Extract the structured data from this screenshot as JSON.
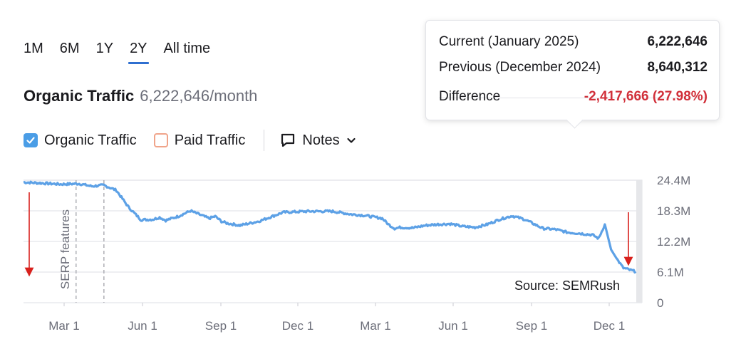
{
  "periods": [
    "1M",
    "6M",
    "1Y",
    "2Y",
    "All time"
  ],
  "active_period": "2Y",
  "header": {
    "title": "Organic Traffic",
    "metric": "6,222,646/month"
  },
  "legend": {
    "organic_label": "Organic Traffic",
    "paid_label": "Paid Traffic",
    "notes_label": "Notes"
  },
  "tooltip": {
    "current_label": "Current (January 2025)",
    "current_value": "6,222,646",
    "previous_label": "Previous (December 2024)",
    "previous_value": "8,640,312",
    "difference_label": "Difference",
    "difference_value": "-2,417,666 (27.98%)"
  },
  "colors": {
    "line": "#5da1e6",
    "accent": "#2f6fd0",
    "negative": "#d1303a",
    "arrow": "#d8201c"
  },
  "annotation": "SERP features",
  "source": "Source: SEMRush",
  "chart_data": {
    "type": "line",
    "title": "Organic Traffic",
    "xlabel": "",
    "ylabel": "",
    "x_ticks": [
      "Mar 1",
      "Jun 1",
      "Sep 1",
      "Dec 1",
      "Mar 1",
      "Jun 1",
      "Sep 1",
      "Dec 1"
    ],
    "y_ticks": [
      "0",
      "6.1M",
      "12.2M",
      "18.3M",
      "24.4M"
    ],
    "ylim": [
      0,
      24.4
    ],
    "grid": true,
    "series": [
      {
        "name": "Organic Traffic (M)",
        "x": [
          0,
          6,
          9,
          11,
          13,
          15,
          17,
          19,
          21,
          22,
          23,
          25,
          27,
          29,
          30,
          31,
          32,
          33,
          35,
          38,
          42,
          46,
          50,
          53,
          55,
          57,
          58,
          59,
          60,
          61,
          63,
          65,
          67,
          69,
          71,
          73,
          75,
          77,
          79,
          81,
          84,
          86,
          88,
          90,
          92,
          93,
          94,
          95,
          96,
          97,
          99
        ],
        "values": [
          24.0,
          23.6,
          23.7,
          23.2,
          23.4,
          22.4,
          19.0,
          16.5,
          16.6,
          17.0,
          16.4,
          17.2,
          18.3,
          17.3,
          16.8,
          17.2,
          16.2,
          15.8,
          15.4,
          16.2,
          18.0,
          18.2,
          18.2,
          17.6,
          17.4,
          17.0,
          16.8,
          15.6,
          14.8,
          15.0,
          14.9,
          15.4,
          15.6,
          15.7,
          15.2,
          15.0,
          15.6,
          16.6,
          17.3,
          16.6,
          14.8,
          14.6,
          14.0,
          13.8,
          13.5,
          12.8,
          15.6,
          10.6,
          8.6,
          6.9,
          6.2
        ]
      }
    ],
    "annotations": [
      {
        "type": "vline",
        "label": "SERP features",
        "x": 8.5
      },
      {
        "type": "vline",
        "label": "",
        "x": 13.0
      }
    ]
  }
}
